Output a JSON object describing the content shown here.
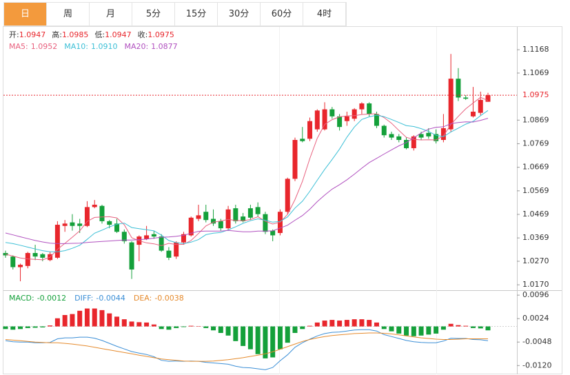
{
  "tabs": [
    "日",
    "周",
    "月",
    "5分",
    "15分",
    "30分",
    "60分",
    "4时"
  ],
  "active_tab": 0,
  "chart_data": [
    {
      "type": "candlestick",
      "ohlc_labels": [
        "开:",
        "高:",
        "低:",
        "收:"
      ],
      "up_color": "#e8262c",
      "down_color": "#14a03a",
      "open": [
        1.0305,
        1.029,
        1.0245,
        1.025,
        1.0305,
        1.03,
        1.0275,
        1.0285,
        1.042,
        1.0435,
        1.043,
        1.042,
        1.05,
        1.0505,
        1.044,
        1.043,
        1.0395,
        1.035,
        1.034,
        1.0365,
        1.0385,
        1.0375,
        1.0315,
        1.029,
        1.035,
        1.038,
        1.045,
        1.048,
        1.045,
        1.044,
        1.041,
        1.0495,
        1.046,
        1.0495,
        1.05,
        1.047,
        1.04,
        1.039,
        1.048,
        1.062,
        1.079,
        1.079,
        1.083,
        1.083,
        1.0915,
        1.0885,
        1.0865,
        1.0875,
        1.0915,
        1.094,
        1.0895,
        1.0845,
        1.081,
        1.08,
        1.0785,
        1.075,
        1.081,
        1.0815,
        1.081,
        1.0785,
        1.083,
        1.1045,
        1.0965,
        1.0885,
        1.09,
        1.0947
      ],
      "high": [
        1.0315,
        1.0295,
        1.026,
        1.031,
        1.034,
        1.0305,
        1.031,
        1.044,
        1.0445,
        1.047,
        1.045,
        1.0525,
        1.053,
        1.051,
        1.0445,
        1.045,
        1.0405,
        1.0355,
        1.038,
        1.042,
        1.04,
        1.0385,
        1.033,
        1.0355,
        1.0395,
        1.046,
        1.051,
        1.051,
        1.049,
        1.045,
        1.0505,
        1.051,
        1.0475,
        1.051,
        1.052,
        1.048,
        1.0405,
        1.049,
        1.0625,
        1.0795,
        1.084,
        1.088,
        1.0915,
        1.0945,
        1.0925,
        1.0895,
        1.0905,
        1.092,
        1.0945,
        1.0945,
        1.0905,
        1.085,
        1.082,
        1.081,
        1.0795,
        1.0805,
        1.082,
        1.0835,
        1.083,
        1.0895,
        1.115,
        1.109,
        1.0975,
        1.101,
        1.099,
        1.0985
      ],
      "low": [
        1.0285,
        1.0235,
        1.0185,
        1.024,
        1.0275,
        1.027,
        1.027,
        1.028,
        1.0395,
        1.04,
        1.039,
        1.0415,
        1.0495,
        1.043,
        1.041,
        1.039,
        1.0345,
        1.0195,
        1.027,
        1.036,
        1.0365,
        1.031,
        1.0275,
        1.028,
        1.034,
        1.0375,
        1.044,
        1.0435,
        1.042,
        1.04,
        1.0405,
        1.043,
        1.0435,
        1.0445,
        1.046,
        1.0385,
        1.0355,
        1.038,
        1.047,
        1.061,
        1.0775,
        1.078,
        1.082,
        1.0825,
        1.0875,
        1.0825,
        1.0845,
        1.0865,
        1.0895,
        1.0885,
        1.0835,
        1.0795,
        1.0785,
        1.0775,
        1.0745,
        1.074,
        1.0785,
        1.079,
        1.077,
        1.0775,
        1.082,
        1.095,
        1.0955,
        1.088,
        1.089,
        1.0947
      ],
      "close": [
        1.0295,
        1.0245,
        1.0255,
        1.0305,
        1.029,
        1.0285,
        1.03,
        1.0425,
        1.043,
        1.042,
        1.042,
        1.05,
        1.051,
        1.044,
        1.0425,
        1.0395,
        1.0355,
        1.0235,
        1.0375,
        1.038,
        1.0375,
        1.0315,
        1.0285,
        1.035,
        1.0385,
        1.0455,
        1.0465,
        1.0445,
        1.043,
        1.041,
        1.049,
        1.044,
        1.044,
        1.0455,
        1.047,
        1.0395,
        1.038,
        1.048,
        1.062,
        1.0785,
        1.078,
        1.0865,
        1.091,
        1.0915,
        1.0885,
        1.084,
        1.0885,
        1.0915,
        1.094,
        1.0895,
        1.0845,
        1.0805,
        1.0795,
        1.0785,
        1.075,
        1.08,
        1.0795,
        1.08,
        1.078,
        1.0835,
        1.1045,
        1.0965,
        1.096,
        1.0905,
        1.0955,
        1.0975
      ],
      "series": [
        {
          "name": "MA5:",
          "color": "#e8607e",
          "values": [
            1.03,
            1.0292,
            1.0284,
            1.028,
            1.0278,
            1.0276,
            1.0287,
            1.0321,
            1.0346,
            1.0372,
            1.0399,
            1.0439,
            1.0456,
            1.0458,
            1.0459,
            1.0454,
            1.0425,
            1.037,
            1.0357,
            1.0348,
            1.0344,
            1.0336,
            1.0346,
            1.0341,
            1.0342,
            1.0358,
            1.0388,
            1.042,
            1.0436,
            1.0441,
            1.0448,
            1.0443,
            1.0442,
            1.0447,
            1.0459,
            1.044,
            1.0428,
            1.0436,
            1.0469,
            1.0532,
            1.0609,
            1.0706,
            1.0792,
            1.0851,
            1.0871,
            1.0883,
            1.0887,
            1.0888,
            1.0893,
            1.0895,
            1.0896,
            1.088,
            1.0856,
            1.0825,
            1.0796,
            1.0787,
            1.0785,
            1.0786,
            1.0785,
            1.0802,
            1.0851,
            1.0885,
            1.0917,
            1.0942,
            1.0966,
            1.0952
          ]
        },
        {
          "name": "MA10:",
          "color": "#3bbfd6",
          "last_label": "1.0910",
          "values": [
            1.035,
            1.0345,
            1.0338,
            1.033,
            1.0322,
            1.0315,
            1.031,
            1.031,
            1.0315,
            1.0325,
            1.0338,
            1.0363,
            1.0389,
            1.0402,
            1.0416,
            1.0427,
            1.0432,
            1.0413,
            1.0408,
            1.0404,
            1.0399,
            1.0381,
            1.0358,
            1.0349,
            1.0345,
            1.0351,
            1.0362,
            1.0383,
            1.0389,
            1.0392,
            1.0403,
            1.0416,
            1.0431,
            1.0442,
            1.045,
            1.0444,
            1.0436,
            1.0439,
            1.0458,
            1.0496,
            1.0525,
            1.0567,
            1.0614,
            1.066,
            1.0702,
            1.0746,
            1.0797,
            1.084,
            1.0872,
            1.0883,
            1.089,
            1.0884,
            1.0872,
            1.0859,
            1.0846,
            1.0842,
            1.0833,
            1.0821,
            1.0805,
            1.0799,
            1.0819,
            1.0835,
            1.0852,
            1.0864,
            1.0888,
            1.091
          ]
        },
        {
          "name": "MA20:",
          "color": "#b04fbf",
          "values": [
            1.039,
            1.0382,
            1.0374,
            1.0366,
            1.0358,
            1.0352,
            1.0347,
            1.0345,
            1.0345,
            1.0346,
            1.0347,
            1.035,
            1.0352,
            1.0354,
            1.0356,
            1.0358,
            1.036,
            1.036,
            1.0362,
            1.0364,
            1.0368,
            1.0372,
            1.0373,
            1.0376,
            1.038,
            1.0389,
            1.0397,
            1.0398,
            1.0398,
            1.0398,
            1.0401,
            1.0398,
            1.0395,
            1.0395,
            1.0398,
            1.0398,
            1.0399,
            1.0411,
            1.0423,
            1.0444,
            1.0464,
            1.0491,
            1.0523,
            1.0551,
            1.0576,
            1.0595,
            1.0616,
            1.064,
            1.0665,
            1.0689,
            1.0707,
            1.0725,
            1.0743,
            1.076,
            1.0774,
            1.0794,
            1.0815,
            1.0831,
            1.0839,
            1.0841,
            1.0854,
            1.0859,
            1.0862,
            1.0861,
            1.0868,
            1.0877
          ]
        }
      ],
      "ylim": [
        1.015,
        1.1262
      ],
      "yticks": [
        1.1168,
        1.1069,
        1.0869,
        1.0769,
        1.0669,
        1.0569,
        1.0469,
        1.0369,
        {
          "value": 1.027,
          "label": "1.0270"
        },
        {
          "value": 1.017,
          "label": "1.0170"
        }
      ]
    },
    {
      "type": "macd",
      "series": [
        {
          "name": "MACD:",
          "up_color": "#e8262c",
          "down_color": "#14a03a",
          "values": [
            -0.0008,
            -0.001,
            -0.0008,
            -0.0005,
            -0.0004,
            -0.0003,
            0.0003,
            0.0025,
            0.0035,
            0.0038,
            0.0048,
            0.0055,
            0.0055,
            0.005,
            0.004,
            0.003,
            0.0022,
            0.0015,
            0.0013,
            0.0012,
            0.0006,
            -0.0008,
            -0.001,
            -0.0005,
            -0.0002,
            0.0002,
            0.0001,
            -0.0005,
            -0.0012,
            -0.002,
            -0.0028,
            -0.0045,
            -0.006,
            -0.007,
            -0.0085,
            -0.0098,
            -0.0095,
            -0.007,
            -0.005,
            -0.002,
            -0.0008,
            0.0002,
            0.0012,
            0.0018,
            0.002,
            0.0018,
            0.002,
            0.0022,
            0.0022,
            0.002,
            0.0012,
            -0.0008,
            -0.0015,
            -0.0022,
            -0.0028,
            -0.003,
            -0.0028,
            -0.0025,
            -0.0022,
            -0.001,
            0.0008,
            0.0004,
            0.0002,
            -0.0005,
            -0.0006,
            -0.0012
          ]
        },
        {
          "name": "DIFF:",
          "color": "#3a8ed6",
          "values": [
            -0.0044,
            -0.0047,
            -0.0048,
            -0.0048,
            -0.005,
            -0.005,
            -0.0049,
            -0.0038,
            -0.0035,
            -0.0035,
            -0.0033,
            -0.0033,
            -0.0036,
            -0.0043,
            -0.0052,
            -0.0061,
            -0.0069,
            -0.0077,
            -0.0082,
            -0.0086,
            -0.0093,
            -0.0104,
            -0.0107,
            -0.0106,
            -0.0107,
            -0.0106,
            -0.0107,
            -0.011,
            -0.0112,
            -0.0114,
            -0.0116,
            -0.0122,
            -0.0126,
            -0.0127,
            -0.013,
            -0.0133,
            -0.0126,
            -0.0105,
            -0.0087,
            -0.0064,
            -0.005,
            -0.0039,
            -0.0029,
            -0.0022,
            -0.0018,
            -0.0017,
            -0.0014,
            -0.0011,
            -0.001,
            -0.001,
            -0.0014,
            -0.0025,
            -0.0031,
            -0.0037,
            -0.0043,
            -0.0047,
            -0.0049,
            -0.005,
            -0.005,
            -0.0045,
            -0.0036,
            -0.0037,
            -0.0037,
            -0.004,
            -0.0041,
            -0.0044
          ]
        },
        {
          "name": "DEA:",
          "color": "#e58a2c",
          "values": [
            -0.004,
            -0.0042,
            -0.0044,
            -0.0046,
            -0.0048,
            -0.0049,
            -0.005,
            -0.005,
            -0.0052,
            -0.0054,
            -0.0057,
            -0.006,
            -0.0064,
            -0.0068,
            -0.0072,
            -0.0076,
            -0.008,
            -0.0084,
            -0.0088,
            -0.0092,
            -0.0096,
            -0.01,
            -0.0102,
            -0.0104,
            -0.0106,
            -0.0107,
            -0.0107,
            -0.0107,
            -0.0106,
            -0.0104,
            -0.0102,
            -0.0099,
            -0.0096,
            -0.0092,
            -0.0088,
            -0.0084,
            -0.0078,
            -0.007,
            -0.0062,
            -0.0054,
            -0.0046,
            -0.004,
            -0.0035,
            -0.0031,
            -0.0028,
            -0.0026,
            -0.0024,
            -0.0022,
            -0.0021,
            -0.002,
            -0.002,
            -0.0021,
            -0.0023,
            -0.0026,
            -0.0029,
            -0.0032,
            -0.0035,
            -0.0037,
            -0.0039,
            -0.004,
            -0.004,
            -0.0039,
            -0.0038,
            -0.0038,
            -0.0038,
            -0.0038
          ]
        }
      ],
      "ylim": [
        -0.0149,
        0.0109
      ],
      "yticks": [
        0.0096,
        0.0024,
        -0.0048,
        {
          "value": -0.012,
          "label": "-0.0120"
        }
      ]
    }
  ]
}
